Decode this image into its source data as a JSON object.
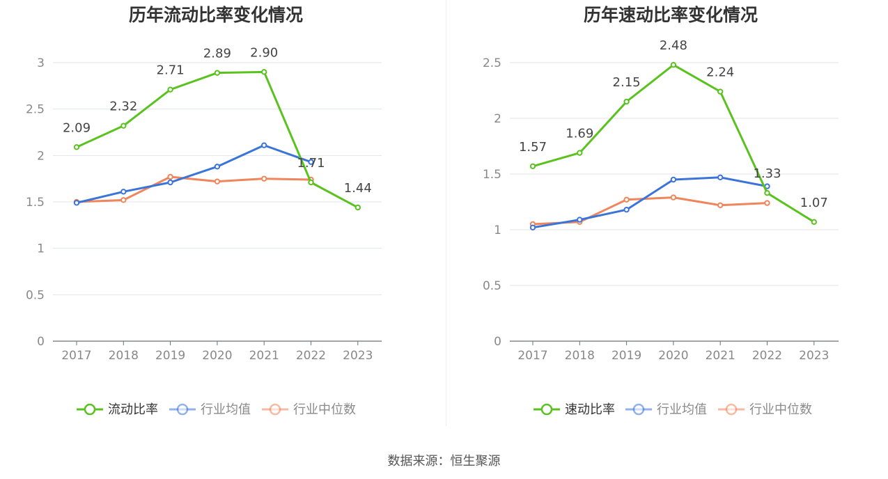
{
  "charts": [
    {
      "type": "line",
      "title": "历年流动比率变化情况",
      "categories": [
        "2017",
        "2018",
        "2019",
        "2020",
        "2021",
        "2022",
        "2023"
      ],
      "ylim": [
        0,
        3
      ],
      "yticks": [
        "0",
        "0.5",
        "1",
        "1.5",
        "2",
        "2.5",
        "3"
      ],
      "series": [
        {
          "name": "流动比率",
          "color": "#5ac21f",
          "values": [
            2.09,
            2.32,
            2.71,
            2.89,
            2.9,
            1.71,
            1.44
          ],
          "labels": [
            "2.09",
            "2.32",
            "2.71",
            "2.89",
            "2.90",
            "1.71",
            "1.44"
          ]
        },
        {
          "name": "行业均值",
          "color": "#3b74d9",
          "values": [
            1.49,
            1.61,
            1.71,
            1.88,
            2.11,
            1.93,
            null
          ]
        },
        {
          "name": "行业中位数",
          "color": "#f0845a",
          "values": [
            1.5,
            1.52,
            1.77,
            1.72,
            1.75,
            1.74,
            null
          ]
        }
      ]
    },
    {
      "type": "line",
      "title": "历年速动比率变化情况",
      "categories": [
        "2017",
        "2018",
        "2019",
        "2020",
        "2021",
        "2022",
        "2023"
      ],
      "ylim": [
        0,
        2.5
      ],
      "yticks": [
        "0",
        "0.5",
        "1",
        "1.5",
        "2",
        "2.5"
      ],
      "series": [
        {
          "name": "速动比率",
          "color": "#5ac21f",
          "values": [
            1.57,
            1.69,
            2.15,
            2.48,
            2.24,
            1.33,
            1.07
          ],
          "labels": [
            "1.57",
            "1.69",
            "2.15",
            "2.48",
            "2.24",
            "1.33",
            "1.07"
          ]
        },
        {
          "name": "行业均值",
          "color": "#3b74d9",
          "values": [
            1.02,
            1.09,
            1.18,
            1.45,
            1.47,
            1.39,
            null
          ]
        },
        {
          "name": "行业中位数",
          "color": "#f0845a",
          "values": [
            1.05,
            1.07,
            1.27,
            1.29,
            1.22,
            1.24,
            null
          ]
        }
      ]
    }
  ],
  "source": "数据来源：恒生聚源"
}
